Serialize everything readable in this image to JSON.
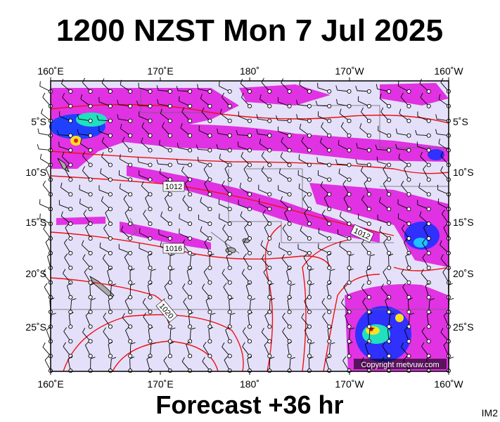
{
  "title": "1200 NZST Mon 7 Jul 2025",
  "footer": "Forecast +36 hr",
  "corner_label": "IM2",
  "copyright": "Copyright metvuw.com",
  "axes": {
    "top": [
      "160˚E",
      "170˚E",
      "180˚",
      "170˚W",
      "160˚W"
    ],
    "bottom": [
      "160˚E",
      "170˚E",
      "180˚",
      "170˚W",
      "160˚W"
    ],
    "left": [
      "5˚S",
      "10˚S",
      "15˚S",
      "20˚S",
      "25˚S"
    ],
    "right": [
      "5˚S",
      "10˚S",
      "15˚S",
      "20˚S",
      "25˚S"
    ]
  },
  "isobar_labels": [
    "1012",
    "1012",
    "1016",
    "1020"
  ]
}
